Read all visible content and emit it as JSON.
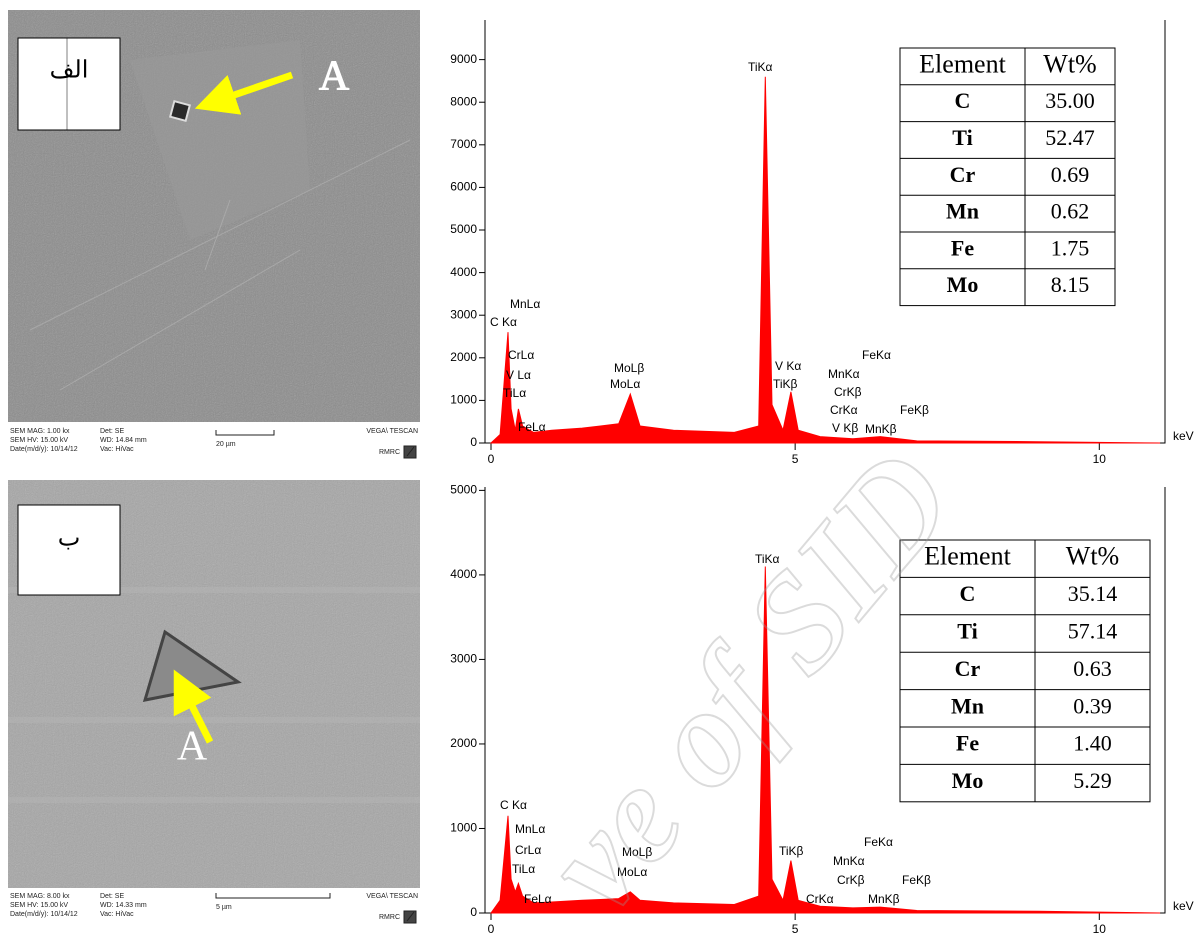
{
  "images": [
    {
      "label": "الف",
      "marker": "A",
      "info": [
        "SEM MAG: 1.00 kx",
        "Det: SE",
        "SEM HV: 15.00 kV",
        "WD: 14.84 mm",
        "Date(m/d/y): 10/14/12",
        "Vac: HiVac"
      ],
      "scale": "20 µm",
      "brand": "VEGA\\ TESCAN",
      "lab": "RMRC"
    },
    {
      "label": "ب",
      "marker": "A",
      "info": [
        "SEM MAG: 8.00 kx",
        "Det: SE",
        "SEM HV: 15.00 kV",
        "WD: 14.33 mm",
        "Date(m/d/y): 10/14/12",
        "Vac: HiVac"
      ],
      "scale": "5 µm",
      "brand": "VEGA\\ TESCAN",
      "lab": "RMRC"
    }
  ],
  "chart_data": [
    {
      "type": "area",
      "x_label": "keV",
      "color": "#ff0000",
      "x": [
        0,
        0.15,
        0.28,
        0.33,
        0.4,
        0.45,
        0.52,
        0.7,
        1.0,
        1.5,
        1.8,
        2.1,
        2.29,
        2.45,
        3.0,
        4.0,
        4.4,
        4.51,
        4.62,
        4.8,
        4.93,
        5.05,
        5.41,
        5.95,
        6.4,
        7.0,
        9.0,
        11.0
      ],
      "values": [
        0,
        200,
        2600,
        800,
        300,
        800,
        400,
        250,
        300,
        350,
        400,
        450,
        1150,
        400,
        300,
        250,
        400,
        8600,
        900,
        300,
        1200,
        300,
        150,
        100,
        150,
        50,
        30,
        0
      ],
      "xlim": [
        0,
        11.08
      ],
      "xticks": [
        0,
        5,
        10
      ],
      "ylim": [
        0,
        9930
      ],
      "yticks": [
        0,
        1000,
        2000,
        3000,
        4000,
        5000,
        6000,
        7000,
        8000,
        9000
      ],
      "annotations": [
        "TiKα",
        "MnLα",
        "C Kα",
        "CrLα",
        "V Lα",
        "TiLα",
        "FeLα",
        "MoLβ",
        "MoLα",
        "V Kα",
        "TiKβ",
        "MnKα",
        "FeKα",
        "CrKβ",
        "CrKα",
        "V Kβ",
        "FeKβ",
        "MnKβ"
      ],
      "table": {
        "header": [
          "Element",
          "Wt%"
        ],
        "rows": [
          [
            "C",
            "35.00"
          ],
          [
            "Ti",
            "52.47"
          ],
          [
            "Cr",
            "0.69"
          ],
          [
            "Mn",
            "0.62"
          ],
          [
            "Fe",
            "1.75"
          ],
          [
            "Mo",
            "8.15"
          ]
        ]
      }
    },
    {
      "type": "area",
      "x_label": "keV",
      "color": "#ff0000",
      "x": [
        0,
        0.15,
        0.28,
        0.33,
        0.4,
        0.45,
        0.52,
        0.7,
        1.0,
        1.5,
        1.8,
        2.1,
        2.29,
        2.45,
        3.0,
        4.0,
        4.4,
        4.51,
        4.62,
        4.8,
        4.93,
        5.05,
        5.41,
        5.95,
        6.4,
        7.0,
        9.0,
        11.0
      ],
      "values": [
        0,
        150,
        1150,
        400,
        250,
        350,
        200,
        120,
        130,
        150,
        160,
        170,
        250,
        150,
        120,
        100,
        200,
        4100,
        400,
        150,
        620,
        150,
        80,
        60,
        70,
        30,
        20,
        0
      ],
      "xlim": [
        0,
        11.08
      ],
      "xticks": [
        0,
        5,
        10
      ],
      "ylim": [
        0,
        5040
      ],
      "yticks": [
        0,
        1000,
        2000,
        3000,
        4000,
        5000
      ],
      "annotations": [
        "TiKα",
        "C Kα",
        "MnLα",
        "CrLα",
        "TiLα",
        "FeLα",
        "MoLβ",
        "MoLα",
        "TiKβ",
        "FeKα",
        "MnKα",
        "CrKβ",
        "FeKβ",
        "CrKα",
        "MnKβ"
      ],
      "table": {
        "header": [
          "Element",
          "Wt%"
        ],
        "rows": [
          [
            "C",
            "35.14"
          ],
          [
            "Ti",
            "57.14"
          ],
          [
            "Cr",
            "0.63"
          ],
          [
            "Mn",
            "0.39"
          ],
          [
            "Fe",
            "1.40"
          ],
          [
            "Mo",
            "5.29"
          ]
        ]
      }
    }
  ],
  "watermark": "ve of SID"
}
